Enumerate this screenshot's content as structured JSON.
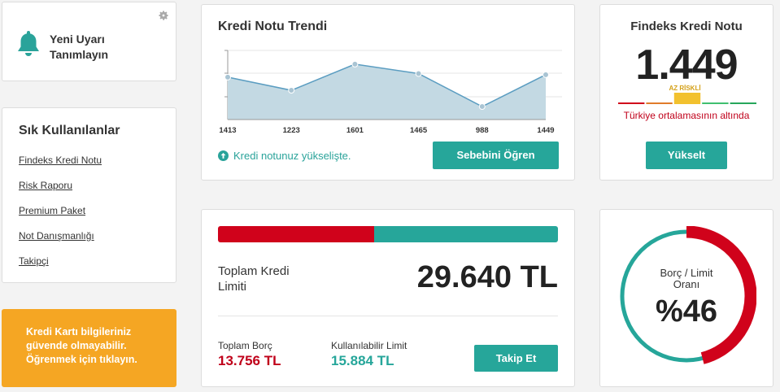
{
  "alert": {
    "text": "Yeni Uyarı Tanımlayın",
    "icon": "bell-icon",
    "settings_icon": "gear-icon"
  },
  "frequent": {
    "title": "Sık Kullanılanlar",
    "links": [
      "Findeks Kredi Notu",
      "Risk Raporu",
      "Premium Paket",
      "Not Danışmanlığı",
      "Takipçi"
    ]
  },
  "banner": {
    "text": "Kredi Kartı bilgileriniz güvende olmayabilir. Öğrenmek için tıklayın."
  },
  "trend": {
    "title": "Kredi Notu Trendi",
    "message": "Kredi notunuz yükselişte.",
    "button": "Sebebini Öğren",
    "chart_data": {
      "type": "area",
      "x": [
        "1413",
        "1223",
        "1601",
        "1465",
        "988",
        "1449"
      ],
      "values": [
        1413,
        1223,
        1601,
        1465,
        988,
        1449
      ],
      "title": "",
      "xlabel": "",
      "ylabel": "",
      "grid": true,
      "colors": {
        "fill": "#c3d9e3",
        "line": "#5b9dc1",
        "point": "#a9c4d3"
      }
    }
  },
  "findeks": {
    "title": "Findeks Kredi Notu",
    "score": "1.449",
    "risk_label": "AZ RİSKLİ",
    "average_text": "Türkiye ortalamasının altında",
    "button": "Yükselt",
    "scale_colors": [
      "#d0021b",
      "#e07b2a",
      "#f2c12e",
      "#3fbf6f",
      "#26a65b"
    ],
    "active_segment": 2
  },
  "limit": {
    "used_fraction": 0.46,
    "total_label": "Toplam Kredi Limiti",
    "total_value": "29.640 TL",
    "debt_label": "Toplam Borç",
    "debt_value": "13.756 TL",
    "available_label": "Kullanılabilir Limit",
    "available_value": "15.884 TL",
    "button": "Takip Et",
    "colors": {
      "used": "#d0021b",
      "free": "#26a69a"
    }
  },
  "ratio": {
    "label": "Borç / Limit Oranı",
    "value": "%46",
    "fraction": 0.46,
    "colors": {
      "used": "#d0021b",
      "free": "#26a69a"
    }
  }
}
